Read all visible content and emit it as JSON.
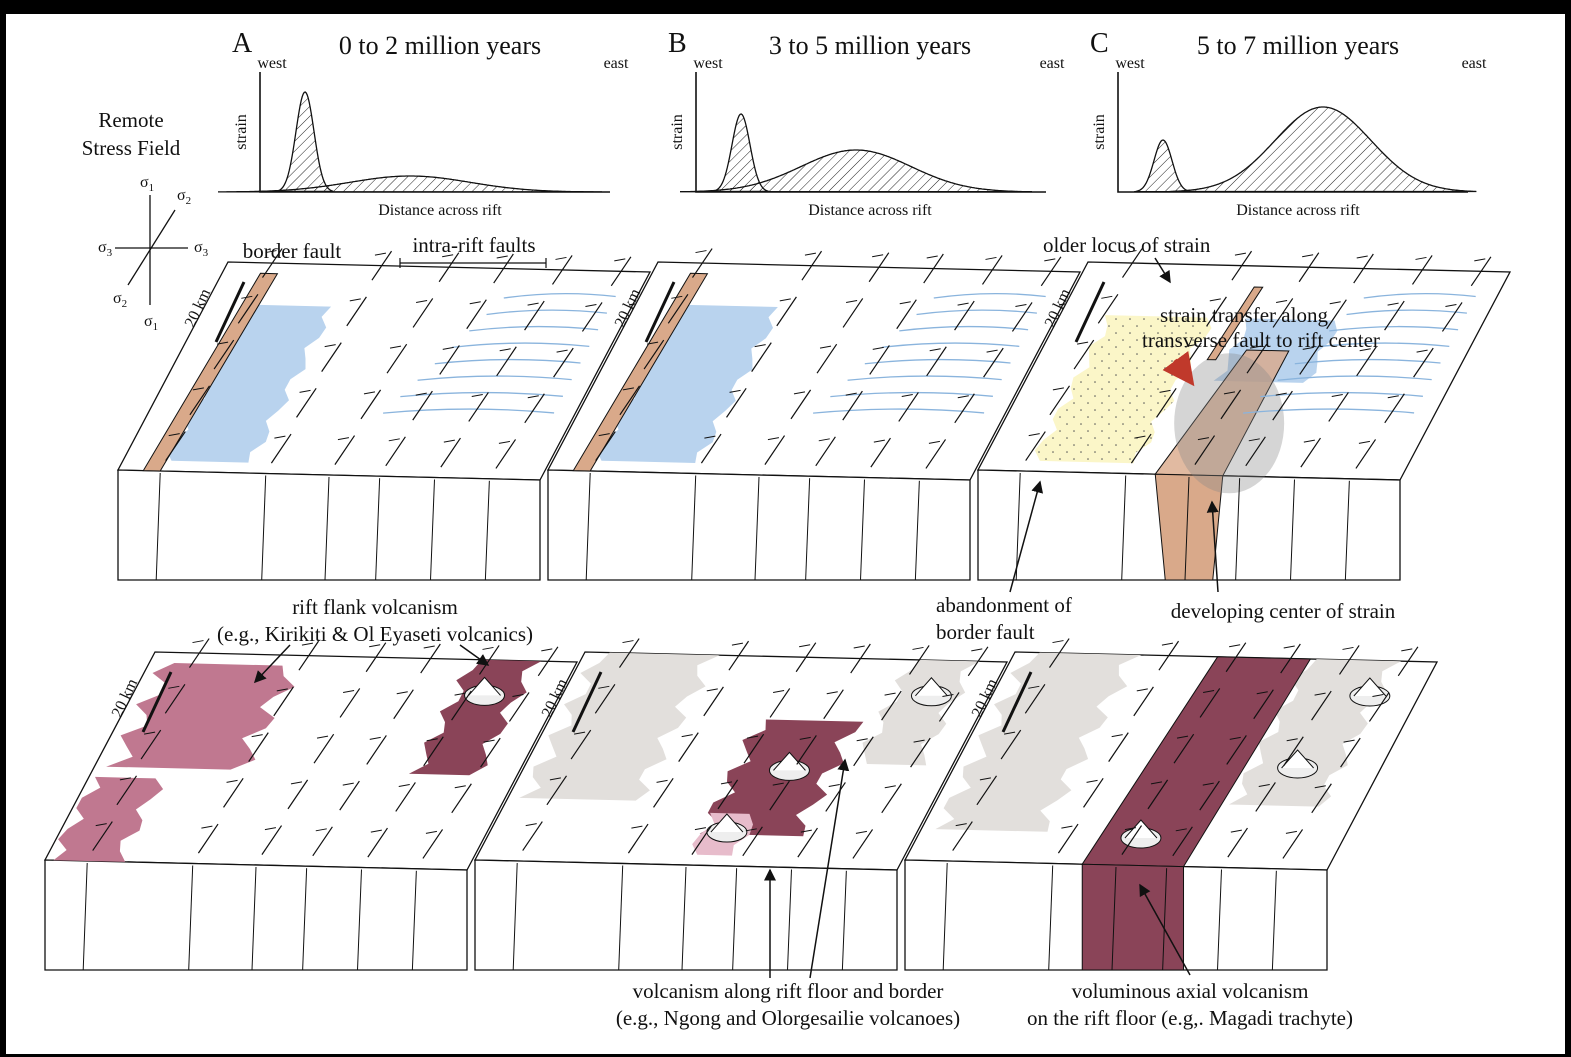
{
  "stress_field": {
    "title_lines": [
      "Remote",
      "Stress Field"
    ],
    "axes": [
      {
        "symbol": "σ",
        "sub": "1"
      },
      {
        "symbol": "σ",
        "sub": "2"
      },
      {
        "symbol": "σ",
        "sub": "3"
      },
      {
        "symbol": "σ",
        "sub": "3"
      },
      {
        "symbol": "σ",
        "sub": "2"
      },
      {
        "symbol": "σ",
        "sub": "1"
      }
    ]
  },
  "panels": [
    {
      "letter": "A",
      "title": "0 to 2 million years",
      "west": "west",
      "east": "east",
      "y_axis": "strain",
      "x_axis": "Distance across rift",
      "scale_bars": [
        "20 km",
        "20 km"
      ]
    },
    {
      "letter": "B",
      "title": "3 to 5 million years",
      "west": "west",
      "east": "east",
      "y_axis": "strain",
      "x_axis": "Distance across rift",
      "scale_bars": [
        "20 km",
        "20 km"
      ]
    },
    {
      "letter": "C",
      "title": "5 to 7 million years",
      "west": "west",
      "east": "east",
      "y_axis": "strain",
      "x_axis": "Distance across rift",
      "scale_bars": [
        "20 km",
        "20 km"
      ]
    }
  ],
  "annotations": {
    "border_fault": "border fault",
    "intra_rift_faults": "intra-rift faults",
    "older_locus": "older locus of strain",
    "strain_transfer": [
      "strain transfer along",
      "transverse fault to rift center"
    ],
    "abandonment": [
      "abandonment of",
      "border fault"
    ],
    "developing_center": "developing center of strain",
    "rift_flank": [
      "rift flank volcanism",
      "(e.g., Kirikiti & Ol Eyaseti volcanics)"
    ],
    "rift_floor": [
      "volcanism along rift floor and border",
      "(e.g., Ngong and Olorgesailie volcanoes)"
    ],
    "axial": [
      "voluminous axial volcanism",
      "on the rift floor (e.g,. Magadi trachyte)"
    ]
  }
}
